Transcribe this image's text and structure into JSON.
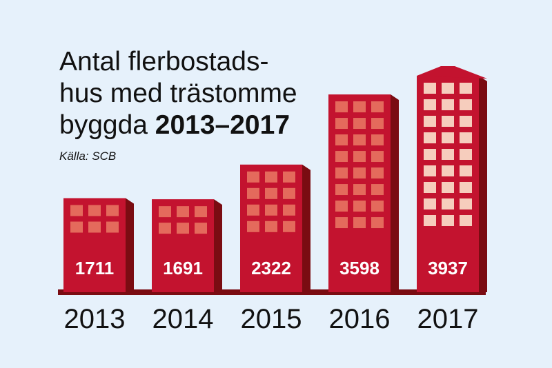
{
  "chart_data": {
    "type": "bar",
    "title_lines": [
      "Antal flerbostads-",
      "hus med trästomme",
      "byggda"
    ],
    "title_emphasis": "2013–2017",
    "source": "Källa: SCB",
    "categories": [
      "2013",
      "2014",
      "2015",
      "2016",
      "2017"
    ],
    "values": [
      1711,
      1691,
      2322,
      3598,
      3937
    ],
    "color": "#c3132f"
  }
}
